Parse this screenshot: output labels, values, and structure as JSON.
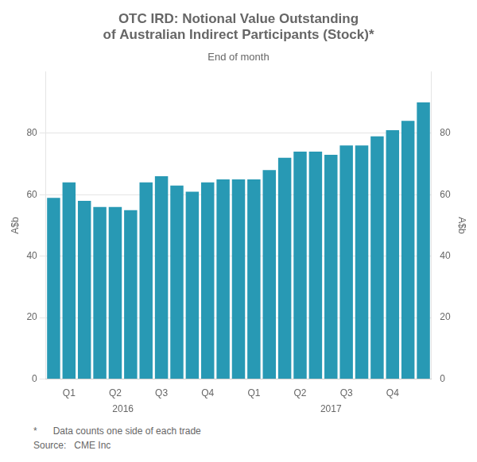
{
  "chart_data": {
    "type": "bar",
    "title": [
      "OTC IRD: Notional Value Outstanding",
      "of Australian Indirect Participants (Stock)*"
    ],
    "subtitle": "End of month",
    "y_label": "A$b",
    "y2_label": "A$b",
    "color": "#2899b4",
    "categories": [
      null,
      "Q1",
      null,
      null,
      "Q2",
      null,
      null,
      "Q3",
      null,
      null,
      "Q4",
      null,
      null,
      "Q1",
      null,
      null,
      "Q2",
      null,
      null,
      "Q3",
      null,
      null,
      "Q4",
      null,
      null
    ],
    "values": [
      59,
      64,
      58,
      56,
      56,
      55,
      64,
      66,
      63,
      61,
      64,
      65,
      65,
      65,
      68,
      72,
      74,
      74,
      73,
      76,
      76,
      79,
      81,
      84,
      90
    ],
    "annotations": [
      {
        "text": "2016",
        "x": 4.5
      },
      {
        "text": "2017",
        "x": 18.0
      }
    ],
    "ylim": [
      0,
      100
    ],
    "yticks": [
      0,
      20,
      40,
      60,
      80
    ],
    "y2lim": [
      0,
      100
    ],
    "y2ticks": [
      0,
      20,
      40,
      60,
      80
    ],
    "footnotes": [
      "*      Data counts one side of each trade",
      "Source:   CME Inc"
    ],
    "grid": true
  }
}
